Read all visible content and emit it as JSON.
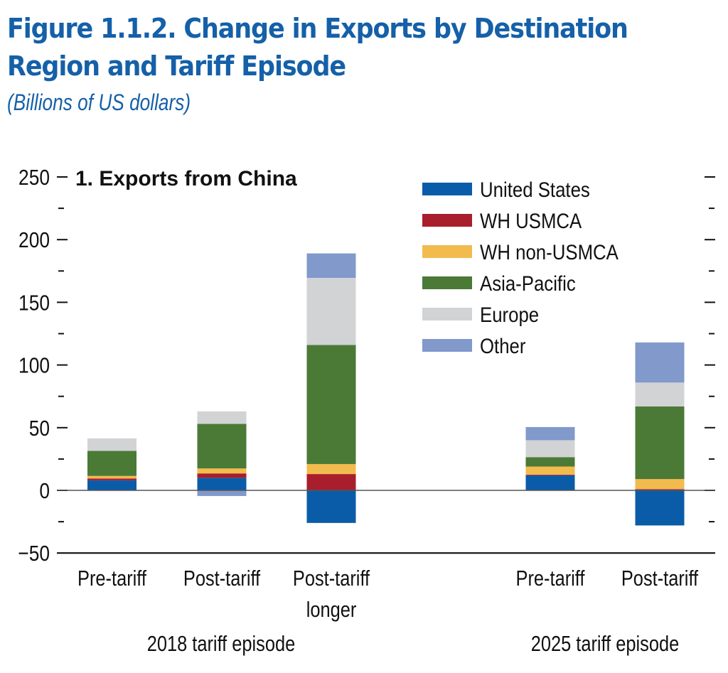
{
  "figure": {
    "title_line1": "Figure 1.1.2.  Change in Exports by Destination",
    "title_line2": "Region and Tariff Episode",
    "subtitle": "(Billions of US dollars)"
  },
  "chart_data": {
    "type": "bar",
    "stacked": true,
    "title": "1. Exports from China",
    "xlabel": "",
    "ylabel": "Billions of US dollars",
    "ylim": [
      -50,
      250
    ],
    "yticks": [
      -50,
      0,
      50,
      100,
      150,
      200,
      250
    ],
    "yticks_minor": [
      -25,
      25,
      75,
      125,
      175,
      225
    ],
    "legend_position": "top-right",
    "grid": false,
    "categories": [
      "Pre-tariff",
      "Post-tariff",
      "Post-tariff longer",
      "Pre-tariff",
      "Post-tariff"
    ],
    "category_label_lines": [
      [
        "Pre-tariff"
      ],
      [
        "Post-tariff"
      ],
      [
        "Post-tariff",
        "longer"
      ],
      [
        "Pre-tariff"
      ],
      [
        "Post-tariff"
      ]
    ],
    "groups": [
      {
        "label": "2018 tariff episode",
        "categories": [
          0,
          1,
          2
        ]
      },
      {
        "label": "2025 tariff episode",
        "categories": [
          3,
          4
        ]
      }
    ],
    "series": [
      {
        "name": "United States",
        "color": "#0B5CA8",
        "values": [
          8,
          10,
          -26,
          12,
          -28
        ]
      },
      {
        "name": "WH USMCA",
        "color": "#A91E2C",
        "values": [
          1.5,
          3.5,
          13,
          0.5,
          1
        ]
      },
      {
        "name": "WH non-USMCA",
        "color": "#F2BB4E",
        "values": [
          2,
          4,
          8,
          6.5,
          8
        ]
      },
      {
        "name": "Asia-Pacific",
        "color": "#4B7A36",
        "values": [
          20,
          35.5,
          95,
          7.5,
          58
        ]
      },
      {
        "name": "Europe",
        "color": "#D2D3D5",
        "values": [
          10,
          10,
          53.5,
          13.5,
          19
        ]
      },
      {
        "name": "Other",
        "color": "#8199CB",
        "values": [
          0,
          -4.5,
          19.5,
          10.5,
          32
        ]
      }
    ]
  }
}
